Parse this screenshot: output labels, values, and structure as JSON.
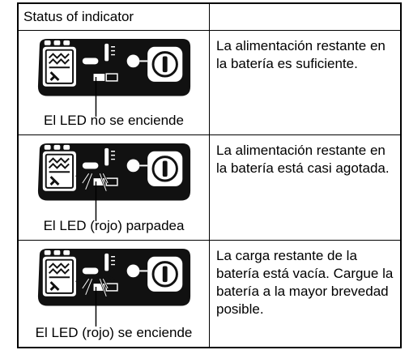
{
  "table": {
    "header": [
      "Status of indicator"
    ],
    "rows": [
      [
        "El LED no se enciende",
        "La alimentación restante en la batería es suficiente."
      ],
      [
        "El LED (rojo) parpadea",
        "La alimentación restante en la batería está casi agotada."
      ],
      [
        "El LED (rojo) se enciende",
        "La carga restante de la batería está vacía. Cargue la batería a la mayor brevedad posible."
      ]
    ]
  }
}
